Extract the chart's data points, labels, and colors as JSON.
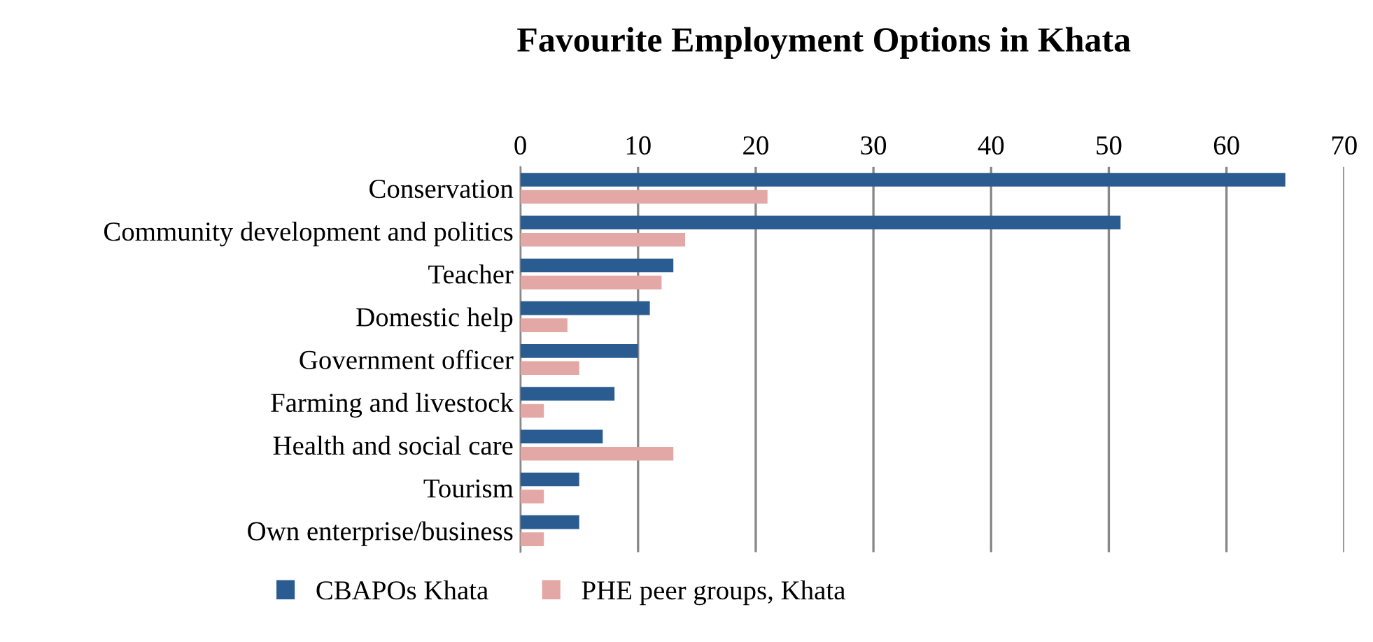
{
  "chart_data": {
    "type": "bar",
    "orientation": "horizontal",
    "title": "Favourite Employment Options in Khata",
    "categories": [
      "Conservation",
      "Community development and politics",
      "Teacher",
      "Domestic help",
      "Government officer",
      "Farming and livestock",
      "Health and social care",
      "Tourism",
      "Own enterprise/business"
    ],
    "series": [
      {
        "name": "CBAPOs Khata",
        "color": "#2a5c91",
        "values": [
          65,
          51,
          13,
          11,
          10,
          8,
          7,
          5,
          5
        ]
      },
      {
        "name": "PHE peer groups, Khata",
        "color": "#e3a7a5",
        "values": [
          21,
          14,
          12,
          4,
          5,
          2,
          13,
          2,
          2
        ]
      }
    ],
    "xlim": [
      0,
      70
    ],
    "xticks": [
      0,
      10,
      20,
      30,
      40,
      50,
      60,
      70
    ],
    "grid": "x",
    "legend": "bottom"
  }
}
